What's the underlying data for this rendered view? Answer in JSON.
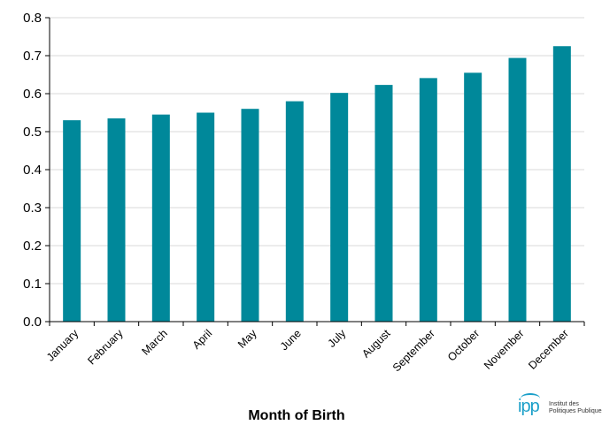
{
  "chart_data": {
    "type": "bar",
    "categories": [
      "January",
      "February",
      "March",
      "April",
      "May",
      "June",
      "July",
      "August",
      "September",
      "October",
      "November",
      "December"
    ],
    "values": [
      0.53,
      0.535,
      0.545,
      0.55,
      0.56,
      0.58,
      0.602,
      0.623,
      0.641,
      0.655,
      0.694,
      0.725
    ],
    "xlabel": "Month of Birth",
    "ylabel": "",
    "ylim": [
      0.0,
      0.8
    ],
    "yticks": [
      "0.0",
      "0.1",
      "0.2",
      "0.3",
      "0.4",
      "0.5",
      "0.6",
      "0.7",
      "0.8"
    ],
    "grid": "horizontal",
    "bar_color": "#00889a",
    "grid_color": "#d9d9d9"
  },
  "logo": {
    "mark": "ipp",
    "line1": "Institut des",
    "line2": "Politiques Publiques",
    "color": "#1a9fc9"
  }
}
